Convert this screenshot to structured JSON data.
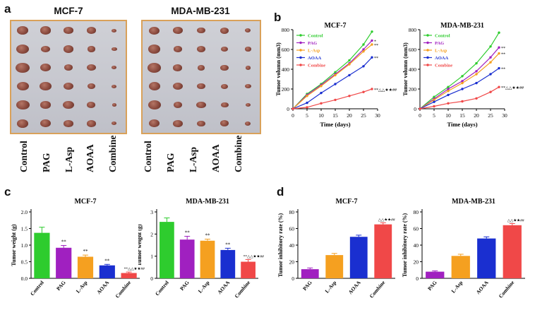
{
  "panels": {
    "a": {
      "letter": "a",
      "left_title": "MCF-7",
      "right_title": "MDA-MB-231",
      "left_labels": [
        "Control",
        "PAG",
        "L-Asp",
        "AOAA",
        "Combine"
      ],
      "right_labels": [
        "Control",
        "PAG",
        "L-Asp",
        "AOAA",
        "Combine"
      ]
    },
    "b": {
      "letter": "b"
    },
    "c": {
      "letter": "c"
    },
    "d": {
      "letter": "d"
    }
  },
  "colors": {
    "Control": "#2ecc2e",
    "PAG": "#a020c0",
    "L-Asp": "#f5a020",
    "AOAA": "#1a2fd0",
    "Combine": "#f04848",
    "photo_border": "#d9a15a"
  },
  "chart_data": [
    {
      "id": "b-mcf7",
      "type": "line",
      "title": "MCF-7",
      "xlabel": "Time (days)",
      "ylabel": "Tumor volumn (mm3)",
      "xlim": [
        0,
        30
      ],
      "ylim": [
        0,
        800
      ],
      "xticks": [
        0,
        5,
        10,
        15,
        20,
        25,
        30
      ],
      "yticks": [
        0,
        200,
        400,
        600,
        800
      ],
      "x": [
        0,
        5,
        10,
        15,
        20,
        25,
        28
      ],
      "series": [
        {
          "name": "Control",
          "values": [
            0,
            150,
            250,
            370,
            490,
            650,
            780
          ],
          "sig": ""
        },
        {
          "name": "PAG",
          "values": [
            0,
            140,
            240,
            350,
            460,
            600,
            690
          ],
          "sig": "*"
        },
        {
          "name": "L-Asp",
          "values": [
            0,
            130,
            230,
            340,
            450,
            580,
            650
          ],
          "sig": "**"
        },
        {
          "name": "AOAA",
          "values": [
            0,
            60,
            160,
            250,
            340,
            430,
            520
          ],
          "sig": "**"
        },
        {
          "name": "Combine",
          "values": [
            0,
            15,
            55,
            90,
            130,
            170,
            200
          ],
          "sig": "**△△★★##"
        }
      ]
    },
    {
      "id": "b-mda",
      "type": "line",
      "title": "MDA-MB-231",
      "xlabel": "Time (days)",
      "ylabel": "Tumor volumn (mm3)",
      "xlim": [
        0,
        30
      ],
      "ylim": [
        0,
        800
      ],
      "xticks": [
        0,
        5,
        10,
        15,
        20,
        25,
        30
      ],
      "yticks": [
        0,
        200,
        400,
        600,
        800
      ],
      "x": [
        0,
        5,
        10,
        15,
        20,
        25,
        28
      ],
      "series": [
        {
          "name": "Control",
          "values": [
            0,
            120,
            220,
            330,
            460,
            630,
            770
          ],
          "sig": ""
        },
        {
          "name": "PAG",
          "values": [
            0,
            100,
            200,
            280,
            380,
            520,
            620
          ],
          "sig": "**"
        },
        {
          "name": "L-Asp",
          "values": [
            0,
            90,
            180,
            260,
            350,
            470,
            560
          ],
          "sig": "**"
        },
        {
          "name": "AOAA",
          "values": [
            0,
            70,
            140,
            200,
            260,
            350,
            410
          ],
          "sig": "**"
        },
        {
          "name": "Combine",
          "values": [
            0,
            25,
            55,
            75,
            105,
            170,
            220
          ],
          "sig": "**△△★★##"
        }
      ]
    },
    {
      "id": "c-mcf7",
      "type": "bar",
      "title": "MCF-7",
      "xlabel": "",
      "ylabel": "Tumor weight (g)",
      "ylim": [
        0,
        2.0
      ],
      "yticks": [
        0.0,
        0.5,
        1.0,
        1.5,
        2.0
      ],
      "categories": [
        "Control",
        "PAG",
        "L-Asp",
        "AOAA",
        "Combine"
      ],
      "values": [
        1.37,
        0.92,
        0.65,
        0.39,
        0.16
      ],
      "errors": [
        0.17,
        0.07,
        0.05,
        0.03,
        0.03
      ],
      "sig": [
        "",
        "**",
        "**",
        "**",
        "**△△★★##"
      ]
    },
    {
      "id": "c-mda",
      "type": "bar",
      "title": "MDA-MB-231",
      "xlabel": "",
      "ylabel": "Tumor weight (g)",
      "ylim": [
        0,
        3
      ],
      "yticks": [
        0,
        1,
        2,
        3
      ],
      "categories": [
        "Control",
        "PAG",
        "L-Asp",
        "AOAA",
        "Combine"
      ],
      "values": [
        2.55,
        1.75,
        1.7,
        1.28,
        0.75
      ],
      "errors": [
        0.18,
        0.15,
        0.07,
        0.08,
        0.1
      ],
      "sig": [
        "",
        "**",
        "**",
        "**",
        "**△△★★##"
      ]
    },
    {
      "id": "d-mcf7",
      "type": "bar",
      "title": "MCF-7",
      "xlabel": "",
      "ylabel": "Tumor inhibitory rate (%)",
      "ylim": [
        0,
        80
      ],
      "yticks": [
        0,
        20,
        40,
        60,
        80
      ],
      "categories": [
        "PAG",
        "L-Asp",
        "AOAA",
        "Combine"
      ],
      "values": [
        11,
        28,
        50,
        65
      ],
      "errors": [
        1.5,
        2,
        2,
        2
      ],
      "sig": [
        "",
        "",
        "",
        "△△★★##"
      ]
    },
    {
      "id": "d-mda",
      "type": "bar",
      "title": "MDA-MB-231",
      "xlabel": "",
      "ylabel": "Tumor inhibitory rate (%)",
      "ylim": [
        0,
        80
      ],
      "yticks": [
        0,
        20,
        40,
        60,
        80
      ],
      "categories": [
        "PAG",
        "L-Asp",
        "AOAA",
        "Combine"
      ],
      "values": [
        8,
        27,
        48,
        64
      ],
      "errors": [
        1,
        2,
        2,
        2
      ],
      "sig": [
        "",
        "",
        "",
        "△△★★##"
      ]
    }
  ]
}
